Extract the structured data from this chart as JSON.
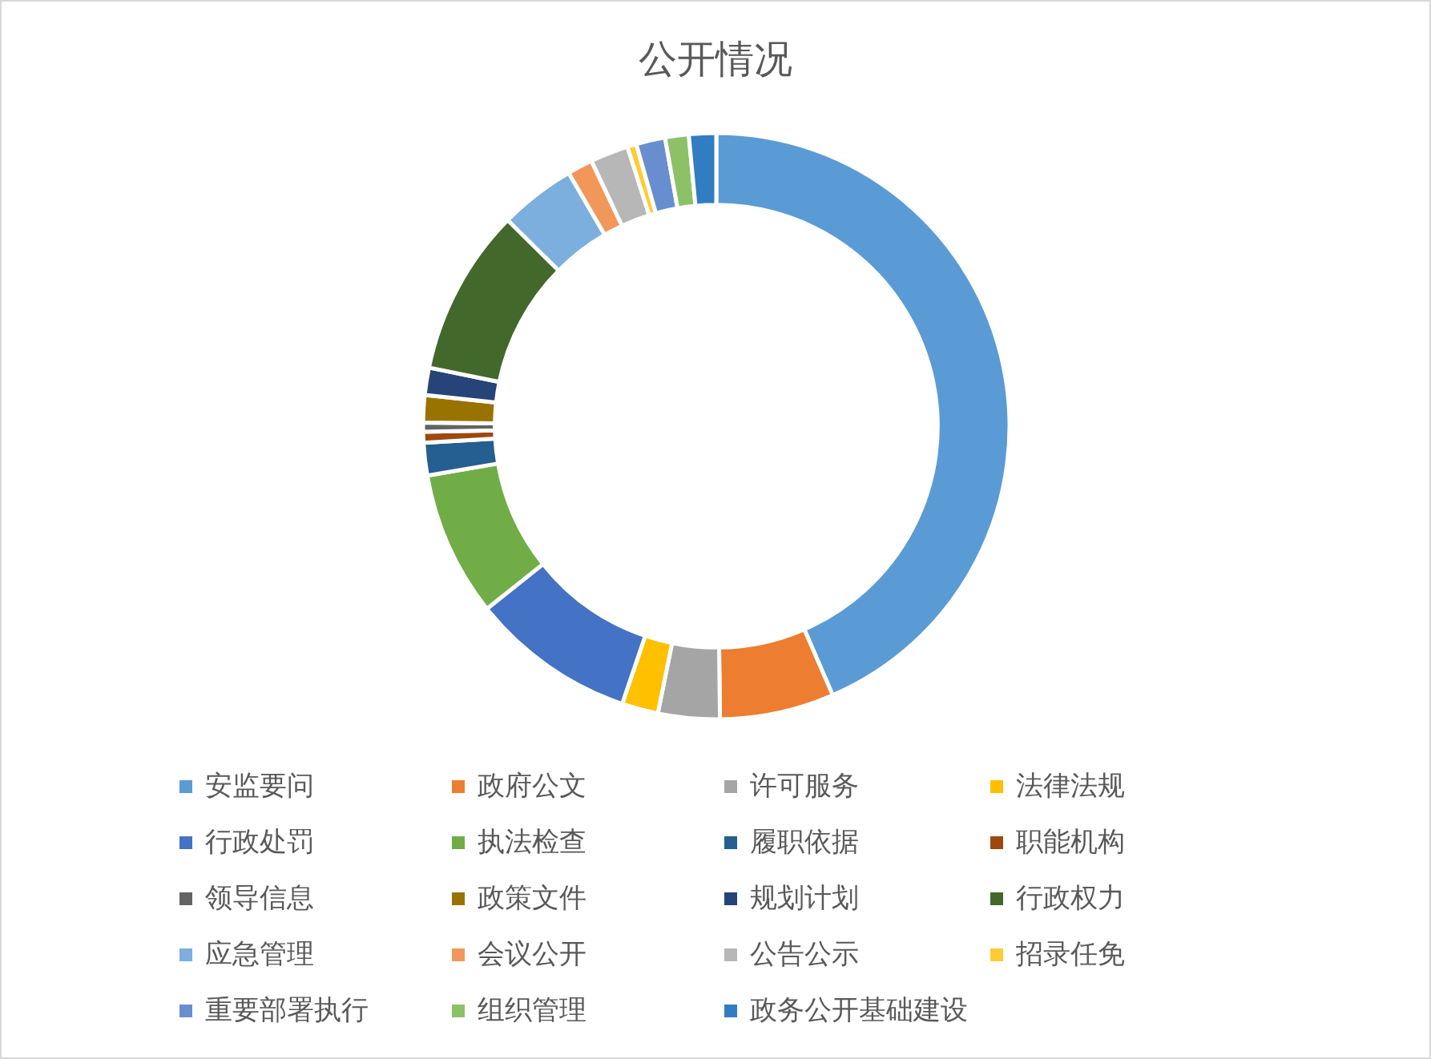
{
  "chart_data": {
    "type": "donut",
    "title": "公开情况",
    "categories": [
      "安监要问",
      "政府公文",
      "许可服务",
      "法律法规",
      "行政处罚",
      "执法检查",
      "履职依据",
      "职能机构",
      "领导信息",
      "政策文件",
      "规划计划",
      "行政权力",
      "应急管理",
      "会议公开",
      "公告公示",
      "招录任免",
      "重要部署执行",
      "组织管理",
      "政务公开基础建设"
    ],
    "values": [
      43.5,
      6.3,
      3.4,
      2.0,
      9.1,
      8.0,
      1.8,
      0.6,
      0.5,
      1.5,
      1.5,
      9.2,
      4.2,
      1.4,
      2.1,
      0.5,
      1.6,
      1.3,
      1.5
    ],
    "colors": [
      "#5b9bd5",
      "#ed7d31",
      "#a5a5a5",
      "#ffc000",
      "#4472c4",
      "#70ad47",
      "#255e91",
      "#9e480e",
      "#636363",
      "#997300",
      "#264478",
      "#43682b",
      "#7cafdd",
      "#f1975a",
      "#b7b7b7",
      "#ffcd33",
      "#698ed0",
      "#8cc168",
      "#327dc2"
    ],
    "legend": "bottom"
  }
}
